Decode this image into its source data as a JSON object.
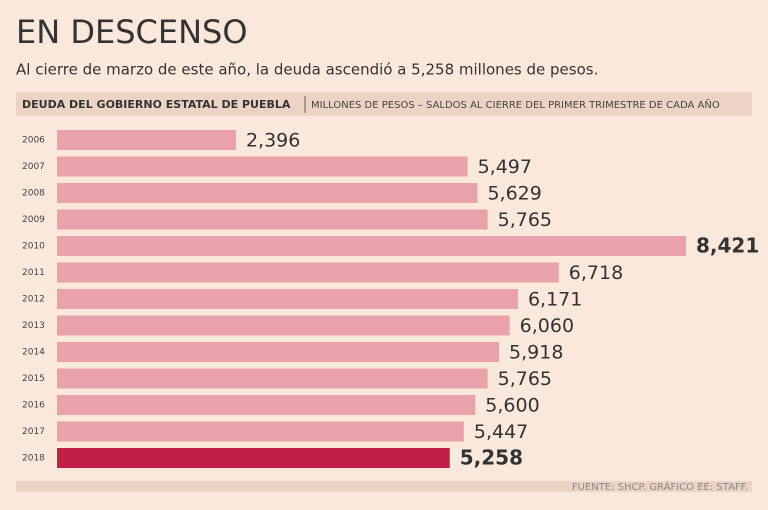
{
  "chart_data": {
    "type": "bar",
    "orientation": "horizontal",
    "title": "EN DESCENSO",
    "subtitle": "Al cierre de marzo de este año, la deuda ascendió a 5,258 millones de pesos.",
    "header": "DEUDA DEL GOBIERNO ESTATAL DE PUEBLA",
    "header_note": "MILLONES DE PESOS – SALDOS AL CIERRE DEL PRIMER TRIMESTRE DE CADA AÑO",
    "source": "FUENTE: SHCP. GRÁFICO EE: STAFF.",
    "categories": [
      "2006",
      "2007",
      "2008",
      "2009",
      "2010",
      "2011",
      "2012",
      "2013",
      "2014",
      "2015",
      "2016",
      "2017",
      "2018"
    ],
    "values": [
      2396,
      5497,
      5629,
      5765,
      8421,
      6718,
      6171,
      6060,
      5918,
      5765,
      5600,
      5447,
      5258
    ],
    "value_labels": [
      "2,396",
      "5,497",
      "5,629",
      "5,765",
      "8,421",
      "6,718",
      "6,171",
      "6,060",
      "5,918",
      "5,765",
      "5,600",
      "5,447",
      "5,258"
    ],
    "colors": [
      "#e9a2aa",
      "#e9a2aa",
      "#e9a2aa",
      "#e9a2aa",
      "#e9a2aa",
      "#e9a2aa",
      "#e9a2aa",
      "#e9a2aa",
      "#e9a2aa",
      "#e9a2aa",
      "#e9a2aa",
      "#e9a2aa",
      "#c21f47"
    ]
  }
}
